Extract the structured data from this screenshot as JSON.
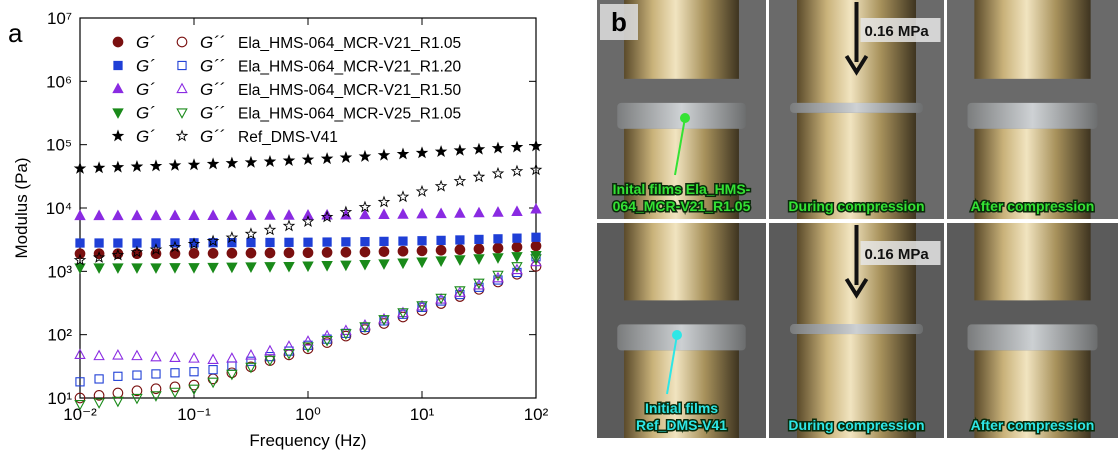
{
  "chart_data": {
    "type": "scatter",
    "panel_label": "a",
    "xlabel": "Frequency (Hz)",
    "ylabel": "Modulus (Pa)",
    "xscale": "log",
    "yscale": "log",
    "xlim": [
      0.01,
      100
    ],
    "ylim": [
      10,
      10000000
    ],
    "xticks": [
      {
        "value": 0.01,
        "label": "10⁻²"
      },
      {
        "value": 0.1,
        "label": "10⁻¹"
      },
      {
        "value": 1,
        "label": "10⁰"
      },
      {
        "value": 10,
        "label": "10¹"
      },
      {
        "value": 100,
        "label": "10²"
      }
    ],
    "yticks": [
      {
        "value": 10,
        "label": "10¹"
      },
      {
        "value": 100,
        "label": "10²"
      },
      {
        "value": 1000,
        "label": "10³"
      },
      {
        "value": 10000,
        "label": "10⁴"
      },
      {
        "value": 100000,
        "label": "10⁵"
      },
      {
        "value": 1000000,
        "label": "10⁶"
      },
      {
        "value": 10000000,
        "label": "10⁷"
      }
    ],
    "x": [
      0.01,
      0.0147,
      0.0215,
      0.0316,
      0.0464,
      0.0681,
      0.1,
      0.147,
      0.215,
      0.316,
      0.464,
      0.681,
      1,
      1.47,
      2.15,
      3.16,
      4.64,
      6.81,
      10,
      14.7,
      21.5,
      31.6,
      46.4,
      68.1,
      100
    ],
    "legend_labels": [
      "Ela_HMS-064_MCR-V21_R1.05",
      "Ela_HMS-064_MCR-V21_R1.20",
      "Ela_HMS-064_MCR-V21_R1.50",
      "Ela_HMS-064_MCR-V25_R1.05",
      "Ref_DMS-V41"
    ],
    "series": [
      {
        "name": "G´",
        "color": "#7a1010",
        "marker": "circle",
        "filled": true,
        "values": [
          1900,
          1900,
          1900,
          1900,
          1900,
          1910,
          1920,
          1920,
          1930,
          1940,
          1950,
          1960,
          1970,
          1990,
          2000,
          2020,
          2050,
          2080,
          2110,
          2150,
          2200,
          2260,
          2330,
          2420,
          2520
        ]
      },
      {
        "name": "G´´",
        "color": "#7a1010",
        "marker": "circle",
        "filled": false,
        "values": [
          10,
          11,
          12,
          13,
          14,
          15,
          16,
          20,
          25,
          31,
          39,
          48,
          60,
          75,
          95,
          120,
          150,
          190,
          240,
          310,
          400,
          520,
          680,
          900,
          1200
        ]
      },
      {
        "name": "G´",
        "color": "#1f3fd6",
        "marker": "square",
        "filled": true,
        "values": [
          2800,
          2800,
          2800,
          2800,
          2810,
          2810,
          2820,
          2830,
          2840,
          2850,
          2860,
          2870,
          2880,
          2900,
          2920,
          2940,
          2970,
          3000,
          3040,
          3080,
          3130,
          3190,
          3260,
          3340,
          3450
        ]
      },
      {
        "name": "G´´",
        "color": "#1f3fd6",
        "marker": "square",
        "filled": false,
        "values": [
          18,
          20,
          22,
          23,
          24,
          25,
          26,
          28,
          32,
          38,
          45,
          55,
          68,
          85,
          105,
          130,
          165,
          210,
          270,
          340,
          430,
          560,
          730,
          960,
          1700
        ]
      },
      {
        "name": "G´",
        "color": "#8a2be2",
        "marker": "triangle",
        "filled": true,
        "values": [
          7500,
          7500,
          7500,
          7500,
          7500,
          7510,
          7520,
          7530,
          7540,
          7560,
          7580,
          7600,
          7630,
          7660,
          7700,
          7750,
          7810,
          7880,
          7960,
          8050,
          8160,
          8300,
          8470,
          8700,
          9500
        ]
      },
      {
        "name": "G´´",
        "color": "#8a2be2",
        "marker": "triangle",
        "filled": false,
        "values": [
          48,
          46,
          47,
          46,
          44,
          43,
          42,
          40,
          42,
          47,
          55,
          65,
          78,
          95,
          115,
          140,
          175,
          220,
          280,
          360,
          460,
          600,
          780,
          1050,
          1400
        ]
      },
      {
        "name": "G´",
        "color": "#1a8a1a",
        "marker": "down",
        "filled": true,
        "values": [
          1150,
          1150,
          1150,
          1150,
          1150,
          1160,
          1160,
          1170,
          1180,
          1190,
          1200,
          1210,
          1230,
          1250,
          1270,
          1300,
          1330,
          1370,
          1420,
          1480,
          1540,
          1600,
          1660,
          1730,
          1800
        ]
      },
      {
        "name": "G´´",
        "color": "#1a8a1a",
        "marker": "down",
        "filled": false,
        "values": [
          8,
          8.5,
          9,
          10,
          11,
          12.5,
          14,
          18,
          24,
          31,
          40,
          51,
          65,
          82,
          105,
          135,
          175,
          225,
          290,
          380,
          500,
          660,
          880,
          1200,
          1600
        ]
      },
      {
        "name": "G´",
        "color": "#000000",
        "marker": "star",
        "filled": true,
        "values": [
          42000,
          43000,
          44000,
          45000,
          46000,
          47000,
          48000,
          49500,
          51000,
          52500,
          54000,
          56000,
          58000,
          60000,
          62500,
          65000,
          68000,
          71000,
          74000,
          77500,
          81000,
          84500,
          88000,
          91500,
          95000
        ]
      },
      {
        "name": "G´´",
        "color": "#000000",
        "marker": "star",
        "filled": false,
        "values": [
          1500,
          1650,
          1800,
          2000,
          2200,
          2400,
          2700,
          3000,
          3400,
          3900,
          4500,
          5200,
          6100,
          7200,
          8600,
          10300,
          12400,
          15000,
          18200,
          22000,
          26500,
          31000,
          35000,
          38000,
          40000
        ]
      }
    ]
  },
  "photo_panel": {
    "label": "b",
    "rows": [
      {
        "pressure": "0.16 MPa",
        "captions": [
          [
            "Inital films Ela_HMS-",
            "064_MCR-V21_R1.05"
          ],
          [
            "During compression"
          ],
          [
            "After compression"
          ]
        ]
      },
      {
        "pressure": "0.16 MPa",
        "captions": [
          [
            "Initial films",
            "Ref_DMS-V41"
          ],
          [
            "During compression"
          ],
          [
            "After compression"
          ]
        ]
      }
    ]
  }
}
